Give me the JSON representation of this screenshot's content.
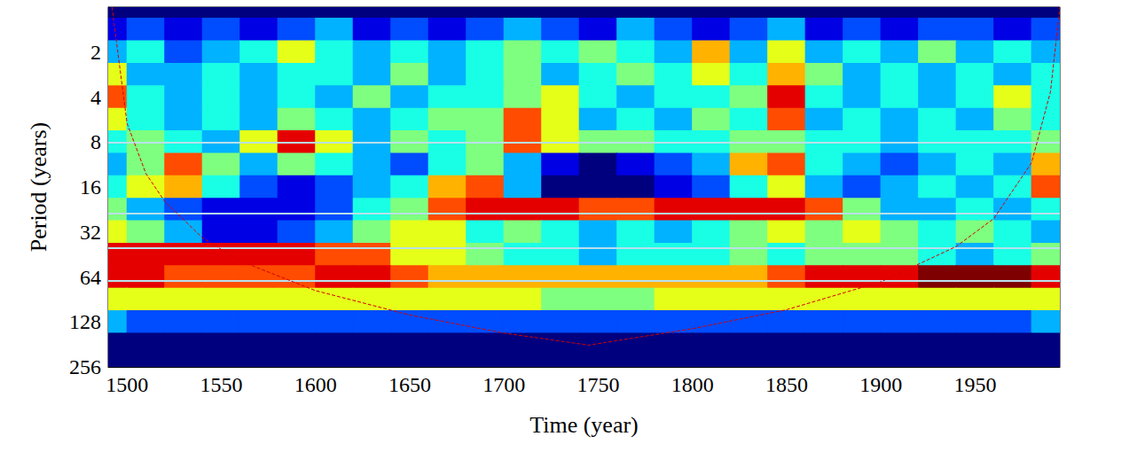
{
  "chart_data": {
    "type": "wavelet_power",
    "x_label": "Time (year)",
    "y_label": "Period (years)",
    "xlim": [
      1490,
      1995
    ],
    "xticks": [
      1500,
      1550,
      1600,
      1650,
      1700,
      1750,
      1800,
      1850,
      1900,
      1950
    ],
    "ylim": [
      1,
      256
    ],
    "yticks": [
      2,
      4,
      8,
      16,
      32,
      64,
      128,
      256
    ],
    "log": "y",
    "x": [
      1490,
      1510,
      1530,
      1550,
      1570,
      1590,
      1610,
      1630,
      1650,
      1670,
      1690,
      1710,
      1730,
      1750,
      1770,
      1790,
      1810,
      1830,
      1850,
      1870,
      1890,
      1910,
      1930,
      1950,
      1970,
      1990
    ],
    "periods": [
      1,
      1.41,
      2,
      2.83,
      4,
      5.66,
      8,
      11.3,
      16,
      22.6,
      32,
      45.3,
      64,
      90.5,
      128,
      181,
      256
    ],
    "power": [
      [
        0,
        0,
        0,
        0,
        0,
        0,
        0,
        0,
        0,
        0,
        0,
        0,
        0,
        0,
        0,
        0,
        0,
        0,
        0,
        0,
        0,
        0,
        0,
        0,
        0,
        0
      ],
      [
        1,
        2,
        1,
        2,
        1,
        2,
        3,
        1,
        2,
        1,
        2,
        3,
        2,
        1,
        3,
        2,
        1,
        2,
        3,
        1,
        2,
        1,
        2,
        2,
        1,
        2
      ],
      [
        3,
        4,
        2,
        3,
        4,
        6,
        4,
        3,
        4,
        3,
        4,
        5,
        4,
        5,
        4,
        3,
        7,
        3,
        6,
        3,
        4,
        3,
        5,
        3,
        4,
        3
      ],
      [
        6,
        3,
        3,
        4,
        3,
        4,
        4,
        3,
        5,
        3,
        4,
        5,
        3,
        4,
        5,
        4,
        6,
        4,
        7,
        5,
        3,
        4,
        3,
        4,
        3,
        4
      ],
      [
        8,
        4,
        3,
        4,
        3,
        4,
        3,
        5,
        3,
        4,
        4,
        5,
        6,
        4,
        3,
        4,
        4,
        5,
        9,
        4,
        3,
        4,
        3,
        4,
        6,
        4
      ],
      [
        6,
        4,
        3,
        4,
        3,
        5,
        4,
        3,
        4,
        5,
        5,
        8,
        6,
        3,
        4,
        3,
        5,
        4,
        8,
        3,
        4,
        3,
        4,
        3,
        5,
        4
      ],
      [
        4,
        5,
        4,
        3,
        6,
        9,
        6,
        3,
        5,
        4,
        5,
        8,
        6,
        5,
        5,
        4,
        4,
        5,
        5,
        4,
        4,
        3,
        4,
        4,
        4,
        5
      ],
      [
        3,
        5,
        8,
        5,
        3,
        5,
        4,
        3,
        2,
        4,
        5,
        3,
        1,
        0,
        1,
        2,
        3,
        7,
        8,
        4,
        3,
        2,
        3,
        4,
        3,
        7
      ],
      [
        4,
        6,
        7,
        4,
        2,
        1,
        2,
        3,
        4,
        7,
        8,
        3,
        0,
        0,
        0,
        1,
        2,
        4,
        6,
        3,
        2,
        3,
        4,
        3,
        4,
        8
      ],
      [
        5,
        3,
        2,
        1,
        1,
        1,
        2,
        4,
        5,
        8,
        9,
        9,
        9,
        8,
        8,
        9,
        9,
        9,
        9,
        8,
        5,
        3,
        3,
        4,
        3,
        4
      ],
      [
        6,
        5,
        3,
        1,
        1,
        2,
        3,
        5,
        6,
        6,
        4,
        5,
        4,
        3,
        4,
        3,
        4,
        5,
        6,
        5,
        6,
        5,
        4,
        5,
        4,
        3
      ],
      [
        9,
        9,
        9,
        9,
        9,
        9,
        8,
        8,
        6,
        6,
        5,
        4,
        4,
        3,
        4,
        4,
        4,
        5,
        4,
        5,
        5,
        5,
        4,
        3,
        4,
        5
      ],
      [
        9,
        9,
        8,
        8,
        8,
        8,
        9,
        9,
        8,
        7,
        7,
        7,
        7,
        7,
        7,
        7,
        7,
        7,
        8,
        9,
        9,
        9,
        10,
        10,
        10,
        9
      ],
      [
        6,
        6,
        6,
        6,
        6,
        6,
        6,
        6,
        6,
        6,
        6,
        6,
        5,
        5,
        5,
        6,
        6,
        6,
        6,
        6,
        6,
        6,
        6,
        6,
        6,
        6
      ],
      [
        3,
        2,
        2,
        2,
        2,
        2,
        2,
        2,
        2,
        2,
        2,
        2,
        2,
        2,
        2,
        2,
        2,
        2,
        2,
        2,
        2,
        2,
        2,
        2,
        2,
        3
      ],
      [
        0,
        0,
        0,
        0,
        0,
        0,
        0,
        0,
        0,
        0,
        0,
        0,
        0,
        0,
        0,
        0,
        0,
        0,
        0,
        0,
        0,
        0,
        0,
        0,
        0,
        0
      ],
      [
        0,
        0,
        0,
        0,
        0,
        0,
        0,
        0,
        0,
        0,
        0,
        0,
        0,
        0,
        0,
        0,
        0,
        0,
        0,
        0,
        0,
        0,
        0,
        0,
        0,
        0
      ]
    ],
    "power_range": [
      0,
      10
    ],
    "cone_of_influence": {
      "x": [
        1492,
        1500,
        1510,
        1520,
        1540,
        1560,
        1600,
        1650,
        1700,
        1745,
        1800,
        1850,
        1900,
        1940,
        1960,
        1980,
        1990,
        1995
      ],
      "period": [
        1,
        6,
        13,
        20,
        35,
        50,
        79,
        115,
        152,
        183,
        142,
        106,
        69,
        40,
        26,
        11,
        3.7,
        1
      ]
    },
    "reference_periods": [
      8,
      24,
      41,
      68
    ]
  }
}
